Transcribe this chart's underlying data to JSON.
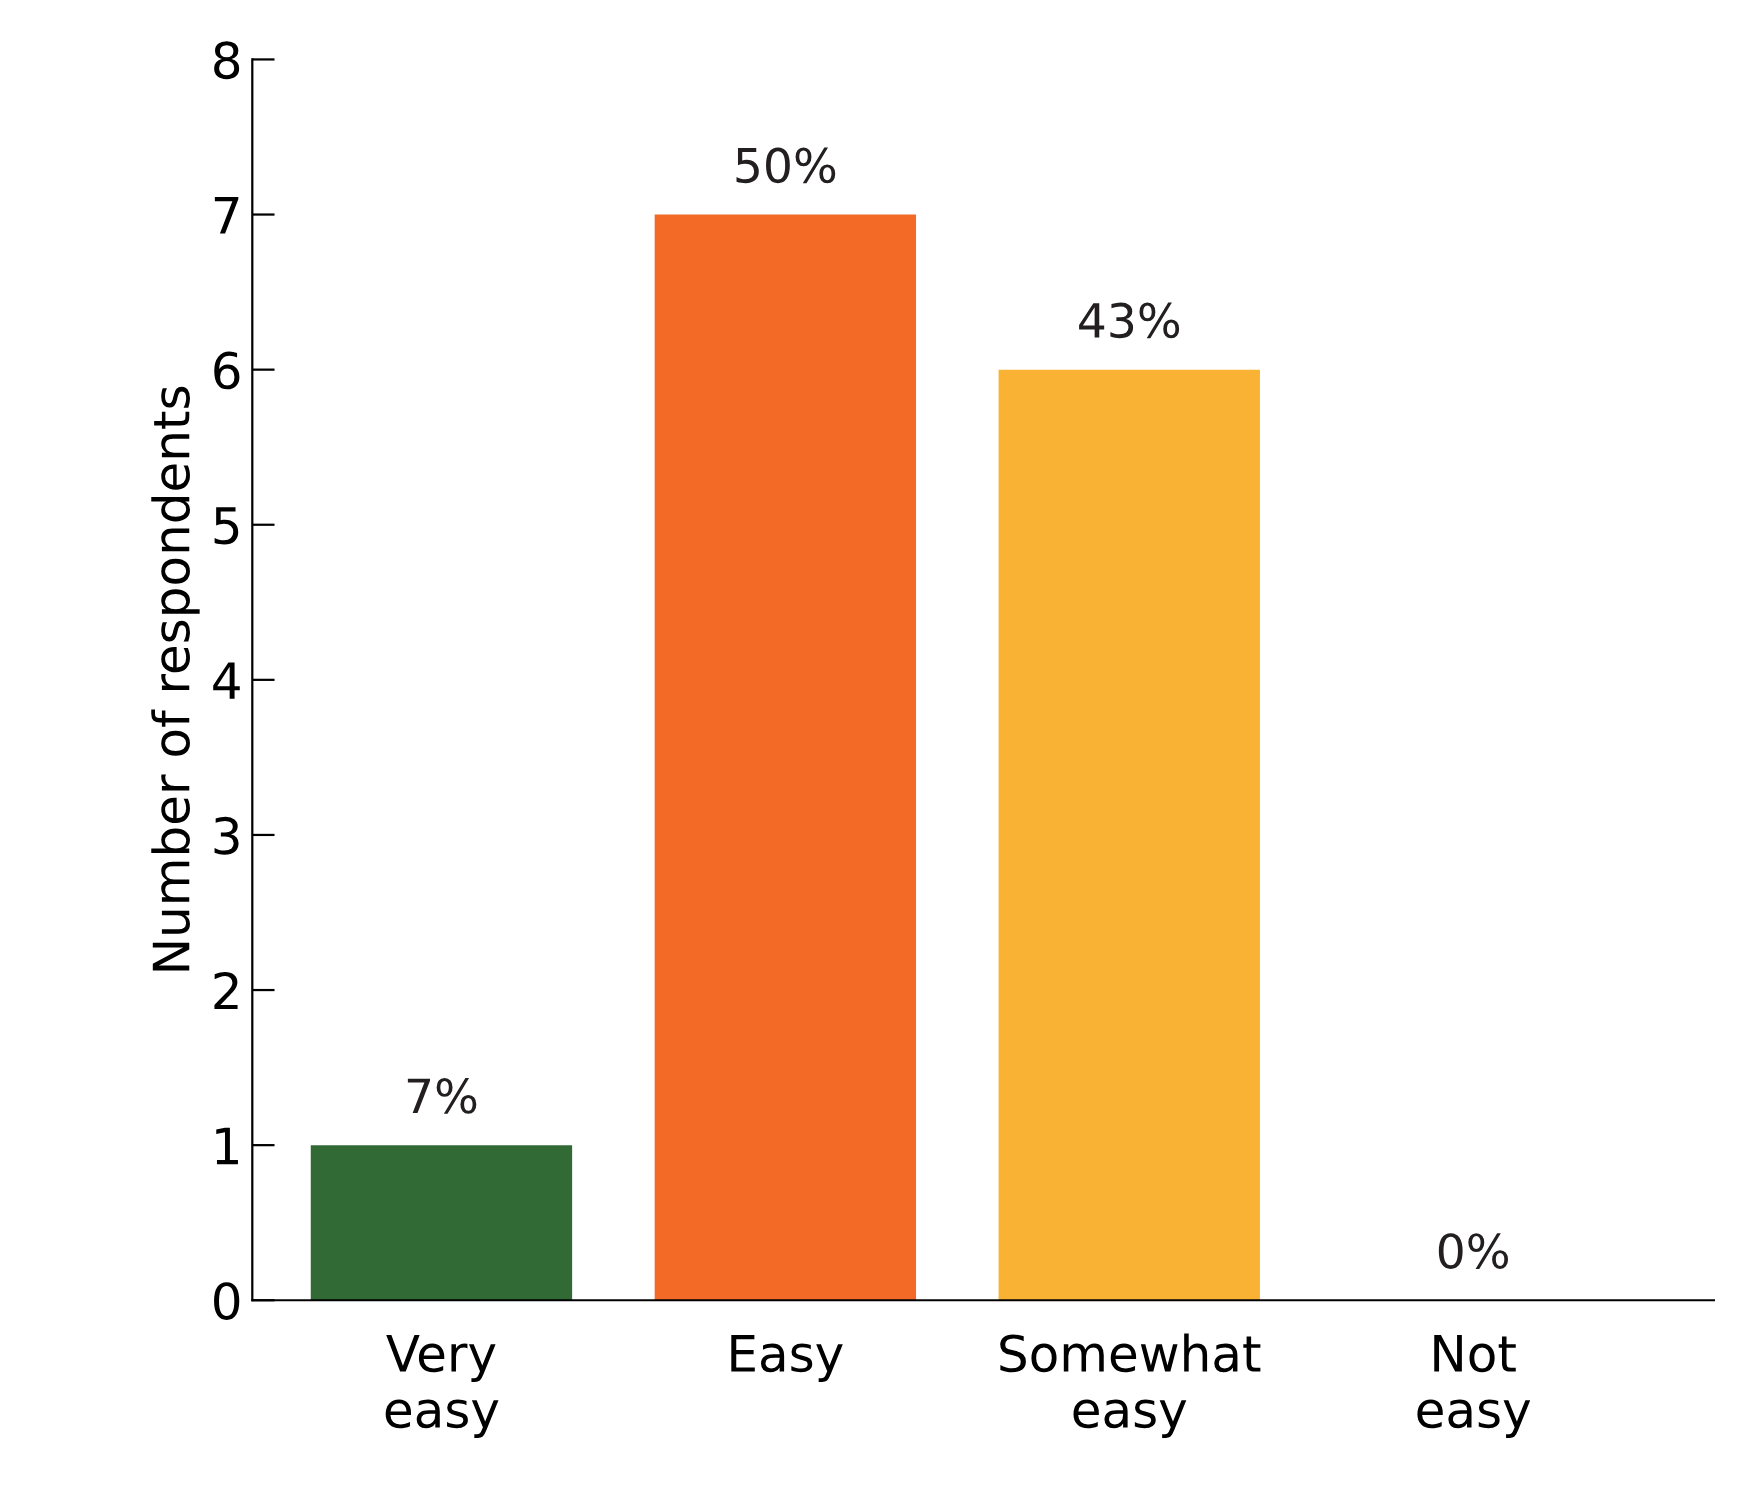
{
  "chart_data": {
    "type": "bar",
    "ylabel": "Number of respondents",
    "categories": [
      "Very\neasy",
      "Easy",
      "Somewhat\neasy",
      "Not\neasy"
    ],
    "values": [
      1,
      7,
      6,
      0
    ],
    "colors": [
      "#316a35",
      "#f26a26",
      "#f9b233",
      null
    ],
    "annotations": [
      {
        "text": "7%",
        "x": "Very\neasy",
        "y": 1
      },
      {
        "text": "50%",
        "x": "Easy",
        "y": 7
      },
      {
        "text": "43%",
        "x": "Somewhat\neasy",
        "y": 6
      },
      {
        "text": "0%",
        "x": "Not\neasy",
        "y": 0
      }
    ],
    "ylim": [
      0,
      8
    ],
    "yticks": [
      0,
      1,
      2,
      3,
      4,
      5,
      6,
      7,
      8
    ],
    "grid": false
  }
}
